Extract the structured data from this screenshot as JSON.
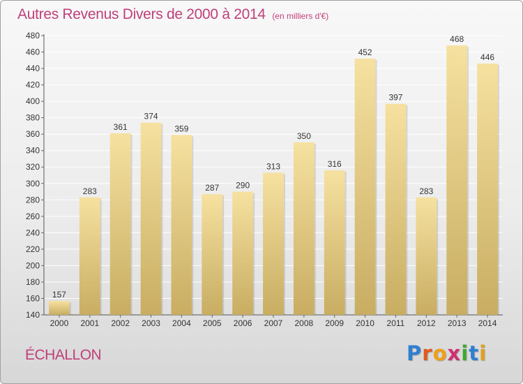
{
  "title": "Autres Revenus Divers de 2000 à 2014",
  "title_unit": "(en milliers d'€)",
  "commune": "ÉCHALLON",
  "logo": {
    "letters": [
      "P",
      "r",
      "o",
      "x",
      "i",
      "t",
      "i"
    ],
    "colors": [
      "#2f7fd0",
      "#e05a1e",
      "#f0a018",
      "#d03070",
      "#40a830",
      "#2f7fd0",
      "#e0a020"
    ]
  },
  "colors": {
    "title": "#c0407a",
    "bar_top": "#f6e1a0",
    "bar_bottom": "#c8ad62"
  },
  "chart_data": {
    "type": "bar",
    "categories": [
      "2000",
      "2001",
      "2002",
      "2003",
      "2004",
      "2005",
      "2006",
      "2007",
      "2008",
      "2009",
      "2010",
      "2011",
      "2012",
      "2013",
      "2014"
    ],
    "values": [
      157,
      283,
      361,
      374,
      359,
      287,
      290,
      313,
      350,
      316,
      452,
      397,
      283,
      468,
      446
    ],
    "yticks": [
      140,
      160,
      180,
      200,
      220,
      240,
      260,
      280,
      300,
      320,
      340,
      360,
      380,
      400,
      420,
      440,
      460,
      480
    ],
    "ylim": [
      140,
      480
    ],
    "grid": true
  }
}
